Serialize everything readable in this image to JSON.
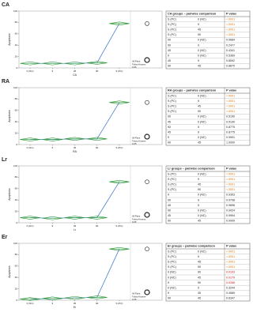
{
  "chart_data": [
    {
      "type": "line",
      "panel_label": "CA",
      "ylabel": "Apoptosis",
      "xlabel": "CA",
      "categories": [
        "0 (NC)",
        "9",
        "45",
        "90",
        "S (PC)"
      ],
      "values": [
        8,
        8,
        8,
        9,
        78
      ],
      "ylim": [
        0,
        100
      ],
      "yticks": [
        0,
        20,
        40,
        60,
        80,
        100
      ],
      "color": "#2e9a3a",
      "line_color": "#4a7fd0",
      "annotation": [
        "All Pairs",
        "Tukey-Kramer",
        "0.05"
      ]
    },
    {
      "type": "line",
      "panel_label": "RA",
      "ylabel": "Apoptosis",
      "xlabel": "RA",
      "categories": [
        "0 (NC)",
        "9",
        "45",
        "90",
        "S (PC)"
      ],
      "values": [
        9,
        9,
        10,
        10,
        74
      ],
      "ylim": [
        0,
        100
      ],
      "yticks": [
        0,
        20,
        40,
        60,
        80,
        100
      ],
      "color": "#2e9a3a",
      "line_color": "#4a7fd0",
      "annotation": [
        "All Pairs",
        "Tukey-Kramer",
        "0.05"
      ]
    },
    {
      "type": "line",
      "panel_label": "Lr",
      "ylabel": "Apoptosis",
      "xlabel": "Lr",
      "categories": [
        "0 (NC)",
        "9",
        "45",
        "90",
        "S (PC)"
      ],
      "values": [
        9,
        8,
        9,
        9,
        72
      ],
      "ylim": [
        0,
        100
      ],
      "yticks": [
        0,
        20,
        40,
        60,
        80,
        100
      ],
      "color": "#2e9a3a",
      "line_color": "#4a7fd0",
      "annotation": [
        "All Pairs",
        "Tukey-Kramer",
        "0.05"
      ]
    },
    {
      "type": "line",
      "panel_label": "Er",
      "ylabel": "Apoptosis",
      "xlabel": "Er",
      "categories": [
        "0 (NC)",
        "9",
        "45",
        "90",
        "S (PC)"
      ],
      "values": [
        2,
        3,
        4,
        5,
        90
      ],
      "ylim": [
        0,
        100
      ],
      "yticks": [
        0,
        20,
        40,
        60,
        80,
        100
      ],
      "color": "#2e9a3a",
      "line_color": "#4a7fd0",
      "annotation": [
        "All Pairs",
        "Tukey-Kramer",
        "0.05"
      ]
    }
  ],
  "tables": [
    {
      "header": [
        "CA groups – pairwise comparison",
        "P value"
      ],
      "rows": [
        [
          "S (PC)",
          "0 (NC)",
          "<.0001"
        ],
        [
          "S (PC)",
          "9",
          "<.0001"
        ],
        [
          "S (PC)",
          "45",
          "<.0001"
        ],
        [
          "S (PC)",
          "90",
          "<.0001"
        ],
        [
          "90",
          "0 (NC)",
          "0.0684"
        ],
        [
          "90",
          "9",
          "0.2477"
        ],
        [
          "45",
          "0 (NC)",
          "0.4341"
        ],
        [
          "9",
          "0 (NC)",
          "0.5369"
        ],
        [
          "45",
          "9",
          "0.8592"
        ],
        [
          "90",
          "45",
          "0.8870"
        ]
      ],
      "value_colors": [
        "#e07000",
        "#e07000",
        "#e07000",
        "#e07000",
        null,
        null,
        null,
        null,
        null,
        null
      ]
    },
    {
      "header": [
        "RA groups – pairwise comparison",
        "P value"
      ],
      "rows": [
        [
          "S (PC)",
          "0 (NC)",
          "<.0001"
        ],
        [
          "S (PC)",
          "9",
          "<.0001"
        ],
        [
          "S (PC)",
          "45",
          "<.0001"
        ],
        [
          "S (PC)",
          "90",
          "<.0001"
        ],
        [
          "90",
          "0 (NC)",
          "0.5190"
        ],
        [
          "45",
          "0 (NC)",
          "0.5190"
        ],
        [
          "90",
          "9",
          "0.8775"
        ],
        [
          "45",
          "9",
          "0.8775"
        ],
        [
          "9",
          "0 (NC)",
          "0.9991"
        ],
        [
          "90",
          "45",
          "1.0000"
        ]
      ],
      "value_colors": [
        "#e07000",
        "#e07000",
        "#e07000",
        "#e07000",
        null,
        null,
        null,
        null,
        null,
        null
      ]
    },
    {
      "header": [
        "Lr groups – pairwise comparison",
        "P value"
      ],
      "rows": [
        [
          "S (PC)",
          "0 (NC)",
          "<.0001"
        ],
        [
          "S (PC)",
          "9",
          "<.0001"
        ],
        [
          "S (PC)",
          "45",
          "<.0001"
        ],
        [
          "S (PC)",
          "90",
          "<.0001"
        ],
        [
          "9",
          "0 (NC)",
          "0.9353"
        ],
        [
          "90",
          "9",
          "0.9798"
        ],
        [
          "45",
          "9",
          "0.9896"
        ],
        [
          "90",
          "0 (NC)",
          "0.9924"
        ],
        [
          "45",
          "0 (NC)",
          "0.9994"
        ],
        [
          "90",
          "45",
          "0.9999"
        ]
      ],
      "value_colors": [
        "#e07000",
        "#e07000",
        "#e07000",
        "#e07000",
        null,
        null,
        null,
        null,
        null,
        null
      ]
    },
    {
      "header": [
        "Er groups – pairwise comparison",
        "P value"
      ],
      "rows": [
        [
          "S (PC)",
          "0 (NC)",
          "<.0001"
        ],
        [
          "S (PC)",
          "9",
          "<.0001"
        ],
        [
          "S (PC)",
          "45",
          "<.0001"
        ],
        [
          "S (PC)",
          "90",
          "<.0001"
        ],
        [
          "0 (NC)",
          "90",
          "0.0103"
        ],
        [
          "0 (NC)",
          "45",
          "0.0179"
        ],
        [
          "9",
          "90",
          "0.0266"
        ],
        [
          "0 (NC)",
          "9",
          "0.3244"
        ],
        [
          "9",
          "45",
          "0.4589"
        ],
        [
          "90",
          "45",
          "0.6347"
        ]
      ],
      "value_colors": [
        "#e07000",
        "#e07000",
        "#e07000",
        "#e07000",
        "#d01010",
        "#d01010",
        "#d01010",
        null,
        null,
        null
      ]
    }
  ]
}
